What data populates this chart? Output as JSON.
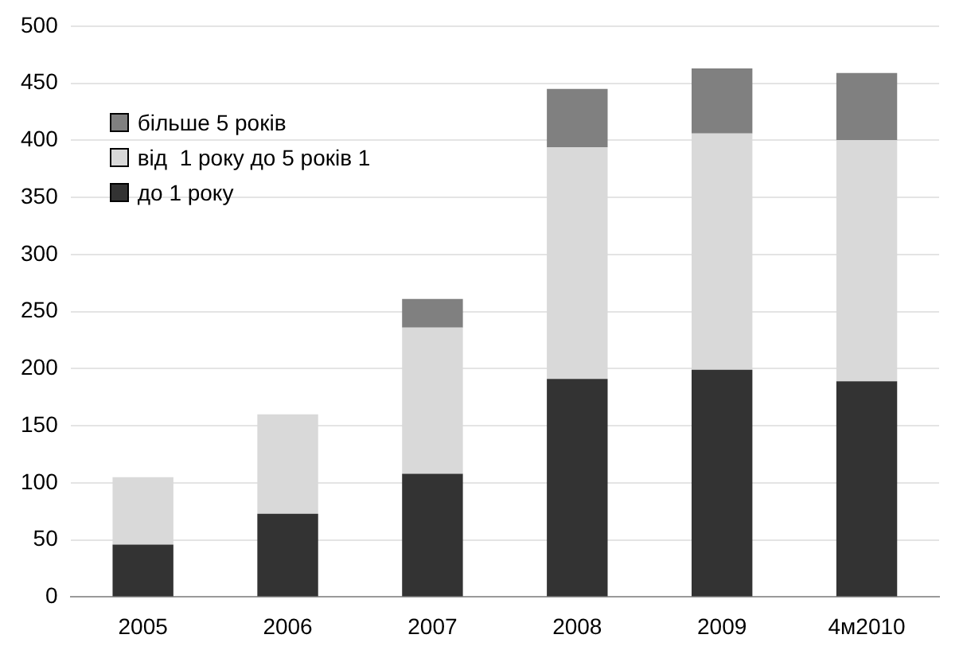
{
  "chart_data": {
    "type": "bar",
    "stacked": true,
    "categories": [
      "2005",
      "2006",
      "2007",
      "2008",
      "2009",
      "4м2010"
    ],
    "series": [
      {
        "name": "до 1 року",
        "color": "#333333",
        "values": [
          46,
          73,
          108,
          191,
          199,
          189
        ]
      },
      {
        "name": "від  1 року до 5 років 1",
        "color": "#d9d9d9",
        "values": [
          59,
          87,
          128,
          203,
          207,
          211
        ]
      },
      {
        "name": "більше 5 років",
        "color": "#808080",
        "values": [
          null,
          null,
          25,
          51,
          57,
          59
        ]
      }
    ],
    "ylim": [
      0,
      500
    ],
    "yticks": [
      0,
      50,
      100,
      150,
      200,
      250,
      300,
      350,
      400,
      450,
      500
    ],
    "grid": "y",
    "legend": "top left"
  }
}
